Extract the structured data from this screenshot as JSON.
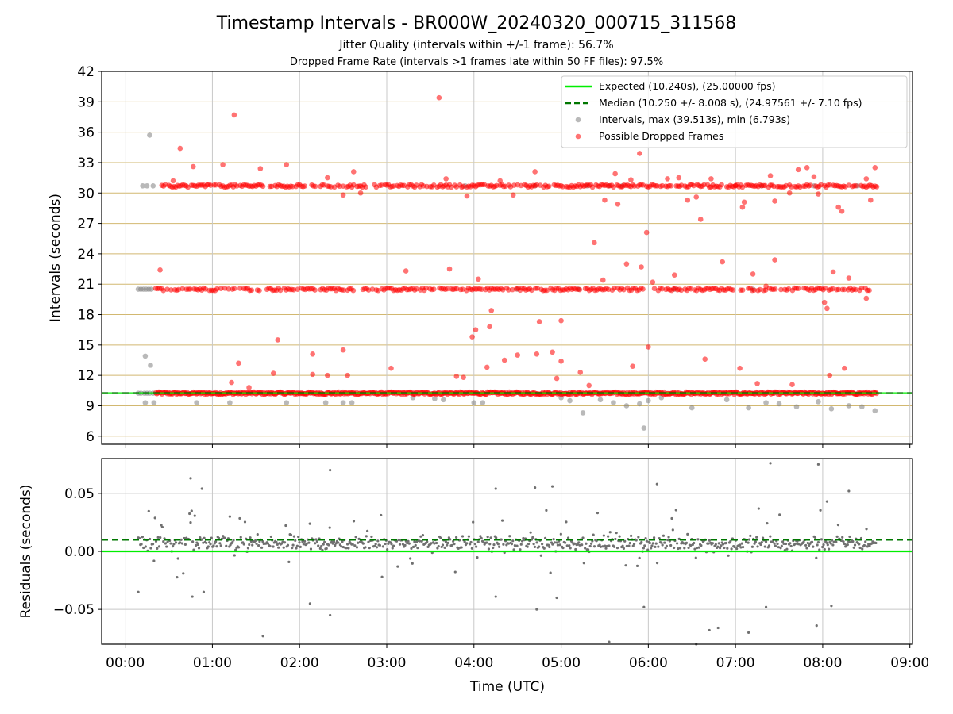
{
  "title": "Timestamp Intervals - BR000W_20240320_000715_311568",
  "subtitle1": "Jitter Quality (intervals within +/-1 frame): 56.7%",
  "subtitle2": "Dropped Frame Rate (intervals >1 frames late within 50 FF files): 97.5%",
  "colors": {
    "expected": "#00ee00",
    "median": "#007700",
    "intervals": "#808080",
    "dropped": "#ff0000",
    "ygrid": "#d2b870",
    "xgrid": "#c8c8c8"
  },
  "chart_data": [
    {
      "type": "scatter",
      "ylabel": "Intervals (seconds)",
      "ylim": [
        5.2,
        42
      ],
      "xlim": [
        -0.27,
        9.03
      ],
      "x_unit": "hours (UTC)",
      "yticks": [
        "6",
        "9",
        "12",
        "15",
        "18",
        "21",
        "24",
        "27",
        "30",
        "33",
        "36",
        "39",
        "42"
      ],
      "grid": "horizontal (tan) + vertical (gray)",
      "legend_position": "top-right",
      "legend": [
        "Expected (10.240s), (25.00000 fps)",
        "Median (10.250 +/- 8.008 s), (24.97561 +/- 7.10 fps)",
        "Intervals, max (39.513s), min (6.793s)",
        "Possible Dropped Frames"
      ],
      "expected_value": 10.24,
      "median_value": 10.25,
      "series": [
        {
          "name": "Intervals, max (39.513s), min (6.793s)",
          "points": [
            [
              0.15,
              10.24
            ],
            [
              0.18,
              10.24
            ],
            [
              0.22,
              10.24
            ],
            [
              0.25,
              10.24
            ],
            [
              0.28,
              10.24
            ],
            [
              0.32,
              10.24
            ],
            [
              0.15,
              20.5
            ],
            [
              0.18,
              20.5
            ],
            [
              0.21,
              20.5
            ],
            [
              0.24,
              20.5
            ],
            [
              0.27,
              20.5
            ],
            [
              0.3,
              20.5
            ],
            [
              0.2,
              30.7
            ],
            [
              0.25,
              30.7
            ],
            [
              0.32,
              30.7
            ],
            [
              0.28,
              35.7
            ],
            [
              0.23,
              13.9
            ],
            [
              0.29,
              13.0
            ],
            [
              0.23,
              9.3
            ],
            [
              0.33,
              9.3
            ],
            [
              0.82,
              9.3
            ],
            [
              1.2,
              9.3
            ],
            [
              1.85,
              9.3
            ],
            [
              2.3,
              9.3
            ],
            [
              2.5,
              9.3
            ],
            [
              2.6,
              9.3
            ],
            [
              3.3,
              9.8
            ],
            [
              3.55,
              9.7
            ],
            [
              3.65,
              9.6
            ],
            [
              4.0,
              9.3
            ],
            [
              4.1,
              9.3
            ],
            [
              5.0,
              9.8
            ],
            [
              5.1,
              9.5
            ],
            [
              5.25,
              8.3
            ],
            [
              5.45,
              9.6
            ],
            [
              5.6,
              9.3
            ],
            [
              5.75,
              9.0
            ],
            [
              5.9,
              9.2
            ],
            [
              5.95,
              6.8
            ],
            [
              6.0,
              9.5
            ],
            [
              6.15,
              9.8
            ],
            [
              6.5,
              8.8
            ],
            [
              6.9,
              9.6
            ],
            [
              7.15,
              8.8
            ],
            [
              7.35,
              9.3
            ],
            [
              7.5,
              9.2
            ],
            [
              7.7,
              8.9
            ],
            [
              7.95,
              9.4
            ],
            [
              8.1,
              8.7
            ],
            [
              8.3,
              9.0
            ],
            [
              8.45,
              8.9
            ],
            [
              8.6,
              8.5
            ],
            [
              5.55,
              30.7
            ],
            [
              5.7,
              30.7
            ],
            [
              7.3,
              30.7
            ],
            [
              7.9,
              30.7
            ],
            [
              8.4,
              30.7
            ],
            [
              4.7,
              30.7
            ],
            [
              5.3,
              30.7
            ],
            [
              3.9,
              30.7
            ],
            [
              4.5,
              20.5
            ],
            [
              5.2,
              20.5
            ],
            [
              6.3,
              20.5
            ],
            [
              7.2,
              20.5
            ]
          ]
        },
        {
          "name": "Possible Dropped Frames",
          "bands": [
            {
              "y": 10.24,
              "x_from": 0.35,
              "x_to": 8.62,
              "spacing": 0.012
            },
            {
              "y": 20.5,
              "x_from": 0.35,
              "x_to": 8.55,
              "spacing": 0.022
            },
            {
              "y": 30.7,
              "x_from": 0.4,
              "x_to": 8.62,
              "spacing": 0.02
            }
          ],
          "outliers": [
            [
              0.4,
              22.4
            ],
            [
              0.55,
              31.2
            ],
            [
              0.63,
              34.4
            ],
            [
              0.78,
              32.6
            ],
            [
              1.12,
              32.8
            ],
            [
              1.25,
              37.7
            ],
            [
              1.3,
              13.2
            ],
            [
              1.22,
              11.3
            ],
            [
              1.42,
              10.8
            ],
            [
              1.55,
              32.4
            ],
            [
              1.7,
              12.2
            ],
            [
              1.75,
              15.5
            ],
            [
              1.85,
              32.8
            ],
            [
              2.15,
              14.1
            ],
            [
              2.15,
              12.1
            ],
            [
              2.32,
              12.0
            ],
            [
              2.32,
              31.5
            ],
            [
              2.5,
              14.5
            ],
            [
              2.55,
              12.0
            ],
            [
              2.5,
              29.8
            ],
            [
              2.62,
              32.1
            ],
            [
              2.7,
              30.0
            ],
            [
              3.05,
              12.7
            ],
            [
              3.22,
              22.3
            ],
            [
              3.6,
              39.4
            ],
            [
              3.68,
              31.4
            ],
            [
              3.72,
              22.5
            ],
            [
              3.8,
              11.9
            ],
            [
              3.88,
              11.8
            ],
            [
              3.92,
              29.7
            ],
            [
              3.98,
              15.8
            ],
            [
              4.02,
              16.5
            ],
            [
              4.05,
              21.5
            ],
            [
              4.15,
              12.8
            ],
            [
              4.18,
              16.8
            ],
            [
              4.2,
              18.4
            ],
            [
              4.3,
              31.2
            ],
            [
              4.35,
              13.5
            ],
            [
              4.45,
              29.8
            ],
            [
              4.5,
              14.0
            ],
            [
              4.7,
              32.1
            ],
            [
              4.75,
              17.3
            ],
            [
              4.72,
              14.1
            ],
            [
              4.9,
              14.3
            ],
            [
              4.95,
              11.7
            ],
            [
              5.0,
              17.4
            ],
            [
              5.0,
              13.4
            ],
            [
              5.22,
              12.3
            ],
            [
              5.32,
              11.0
            ],
            [
              5.38,
              25.1
            ],
            [
              5.48,
              21.4
            ],
            [
              5.5,
              29.3
            ],
            [
              5.62,
              31.9
            ],
            [
              5.65,
              28.9
            ],
            [
              5.75,
              23.0
            ],
            [
              5.8,
              31.3
            ],
            [
              5.82,
              12.9
            ],
            [
              5.9,
              33.9
            ],
            [
              5.92,
              22.7
            ],
            [
              5.98,
              26.1
            ],
            [
              6.0,
              14.8
            ],
            [
              6.05,
              21.2
            ],
            [
              6.1,
              30.7
            ],
            [
              6.22,
              31.4
            ],
            [
              6.3,
              21.9
            ],
            [
              6.35,
              31.5
            ],
            [
              6.45,
              29.3
            ],
            [
              6.55,
              29.6
            ],
            [
              6.6,
              27.4
            ],
            [
              6.65,
              13.6
            ],
            [
              6.72,
              31.4
            ],
            [
              6.85,
              23.2
            ],
            [
              7.0,
              30.7
            ],
            [
              7.05,
              12.7
            ],
            [
              7.08,
              28.6
            ],
            [
              7.1,
              29.1
            ],
            [
              7.2,
              22.0
            ],
            [
              7.25,
              11.2
            ],
            [
              7.35,
              20.8
            ],
            [
              7.4,
              31.7
            ],
            [
              7.45,
              23.4
            ],
            [
              7.45,
              29.2
            ],
            [
              7.62,
              30.0
            ],
            [
              7.65,
              11.1
            ],
            [
              7.72,
              32.3
            ],
            [
              7.82,
              32.5
            ],
            [
              7.9,
              31.6
            ],
            [
              7.95,
              29.9
            ],
            [
              8.02,
              19.2
            ],
            [
              8.05,
              18.6
            ],
            [
              8.08,
              12.0
            ],
            [
              8.12,
              22.2
            ],
            [
              8.18,
              28.6
            ],
            [
              8.22,
              28.2
            ],
            [
              8.25,
              12.7
            ],
            [
              8.3,
              21.6
            ],
            [
              8.5,
              31.4
            ],
            [
              8.5,
              19.6
            ],
            [
              8.55,
              29.3
            ],
            [
              8.6,
              32.5
            ]
          ]
        }
      ]
    },
    {
      "type": "scatter",
      "ylabel": "Residuals (seconds)",
      "xlabel": "Time (UTC)",
      "ylim": [
        -0.08,
        0.08
      ],
      "yticks": [
        {
          "v": 0.05,
          "label": "0.05"
        },
        {
          "v": 0.0,
          "label": "0.00"
        },
        {
          "v": -0.05,
          "label": "−0.05"
        }
      ],
      "xticks": [
        "00:00",
        "01:00",
        "02:00",
        "03:00",
        "04:00",
        "05:00",
        "06:00",
        "07:00",
        "08:00",
        "09:00"
      ],
      "expected_residual": 0.0,
      "median_residual": 0.01,
      "residual_cluster": {
        "center": 0.007,
        "spread": 0.006,
        "x_from": 0.15,
        "x_to": 8.62
      },
      "residual_outliers": [
        [
          0.15,
          -0.035
        ],
        [
          0.75,
          0.063
        ],
        [
          0.88,
          0.054
        ],
        [
          0.77,
          -0.039
        ],
        [
          0.9,
          -0.035
        ],
        [
          1.2,
          0.03
        ],
        [
          1.58,
          -0.073
        ],
        [
          2.12,
          -0.045
        ],
        [
          2.35,
          0.07
        ],
        [
          2.35,
          -0.055
        ],
        [
          4.25,
          0.054
        ],
        [
          4.25,
          -0.039
        ],
        [
          4.7,
          0.055
        ],
        [
          4.72,
          -0.05
        ],
        [
          4.9,
          0.056
        ],
        [
          4.95,
          -0.04
        ],
        [
          5.55,
          -0.078
        ],
        [
          5.95,
          -0.048
        ],
        [
          6.1,
          0.058
        ],
        [
          6.55,
          -0.08
        ],
        [
          6.7,
          -0.068
        ],
        [
          6.8,
          -0.066
        ],
        [
          7.15,
          -0.07
        ],
        [
          7.4,
          0.076
        ],
        [
          7.35,
          -0.048
        ],
        [
          7.95,
          0.075
        ],
        [
          7.93,
          -0.064
        ],
        [
          8.3,
          0.052
        ],
        [
          8.05,
          0.043
        ],
        [
          8.1,
          -0.047
        ]
      ]
    }
  ]
}
